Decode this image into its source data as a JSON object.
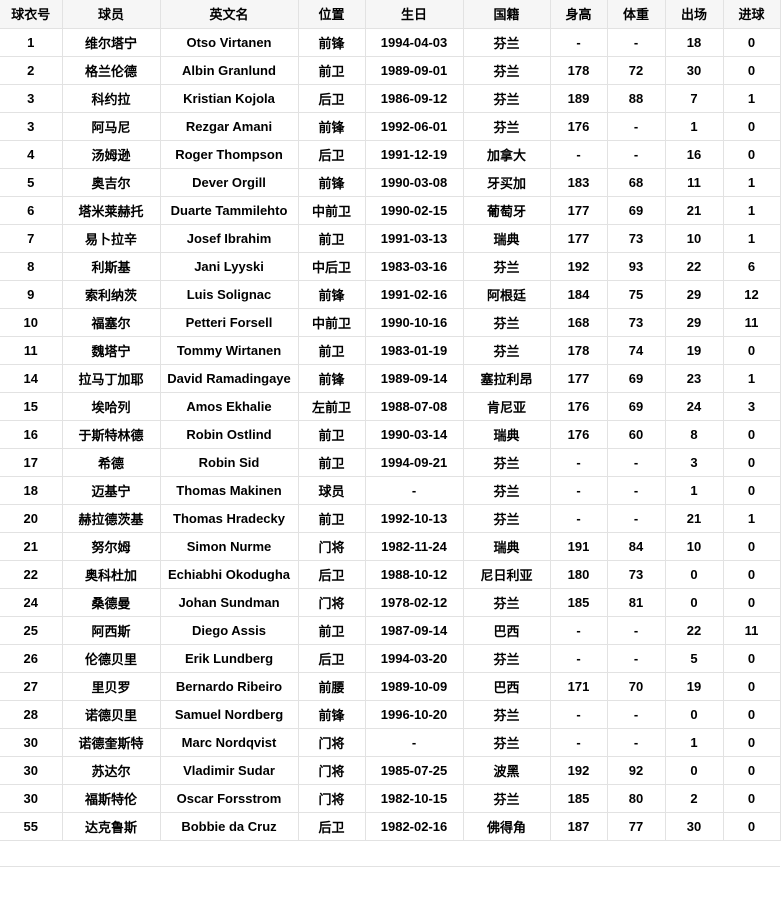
{
  "colors": {
    "border": "#e2e2e2",
    "header_bg": "#f6f6f6",
    "row_bg": "#ffffff",
    "text": "#000000"
  },
  "table": {
    "headers": [
      "球衣号",
      "球员",
      "英文名",
      "位置",
      "生日",
      "国籍",
      "身高",
      "体重",
      "出场",
      "进球"
    ],
    "column_keys": [
      "jersey-number",
      "player-name",
      "english-name",
      "position",
      "birthday",
      "nationality",
      "height",
      "weight",
      "appearances",
      "goals"
    ],
    "rows": [
      [
        "1",
        "维尔塔宁",
        "Otso Virtanen",
        "前锋",
        "1994-04-03",
        "芬兰",
        "-",
        "-",
        "18",
        "0"
      ],
      [
        "2",
        "格兰伦德",
        "Albin Granlund",
        "前卫",
        "1989-09-01",
        "芬兰",
        "178",
        "72",
        "30",
        "0"
      ],
      [
        "3",
        "科约拉",
        "Kristian Kojola",
        "后卫",
        "1986-09-12",
        "芬兰",
        "189",
        "88",
        "7",
        "1"
      ],
      [
        "3",
        "阿马尼",
        "Rezgar Amani",
        "前锋",
        "1992-06-01",
        "芬兰",
        "176",
        "-",
        "1",
        "0"
      ],
      [
        "4",
        "汤姆逊",
        "Roger Thompson",
        "后卫",
        "1991-12-19",
        "加拿大",
        "-",
        "-",
        "16",
        "0"
      ],
      [
        "5",
        "奥吉尔",
        "Dever Orgill",
        "前锋",
        "1990-03-08",
        "牙买加",
        "183",
        "68",
        "11",
        "1"
      ],
      [
        "6",
        "塔米莱赫托",
        "Duarte Tammilehto",
        "中前卫",
        "1990-02-15",
        "葡萄牙",
        "177",
        "69",
        "21",
        "1"
      ],
      [
        "7",
        "易卜拉辛",
        "Josef Ibrahim",
        "前卫",
        "1991-03-13",
        "瑞典",
        "177",
        "73",
        "10",
        "1"
      ],
      [
        "8",
        "利斯基",
        "Jani Lyyski",
        "中后卫",
        "1983-03-16",
        "芬兰",
        "192",
        "93",
        "22",
        "6"
      ],
      [
        "9",
        "索利纳茨",
        "Luis Solignac",
        "前锋",
        "1991-02-16",
        "阿根廷",
        "184",
        "75",
        "29",
        "12"
      ],
      [
        "10",
        "福塞尔",
        "Petteri Forsell",
        "中前卫",
        "1990-10-16",
        "芬兰",
        "168",
        "73",
        "29",
        "11"
      ],
      [
        "11",
        "魏塔宁",
        "Tommy Wirtanen",
        "前卫",
        "1983-01-19",
        "芬兰",
        "178",
        "74",
        "19",
        "0"
      ],
      [
        "14",
        "拉马丁加耶",
        "David Ramadingaye",
        "前锋",
        "1989-09-14",
        "塞拉利昂",
        "177",
        "69",
        "23",
        "1"
      ],
      [
        "15",
        "埃哈列",
        "Amos Ekhalie",
        "左前卫",
        "1988-07-08",
        "肯尼亚",
        "176",
        "69",
        "24",
        "3"
      ],
      [
        "16",
        "于斯特林德",
        "Robin Ostlind",
        "前卫",
        "1990-03-14",
        "瑞典",
        "176",
        "60",
        "8",
        "0"
      ],
      [
        "17",
        "希德",
        "Robin Sid",
        "前卫",
        "1994-09-21",
        "芬兰",
        "-",
        "-",
        "3",
        "0"
      ],
      [
        "18",
        "迈基宁",
        "Thomas Makinen",
        "球员",
        "-",
        "芬兰",
        "-",
        "-",
        "1",
        "0"
      ],
      [
        "20",
        "赫拉德茨基",
        "Thomas Hradecky",
        "前卫",
        "1992-10-13",
        "芬兰",
        "-",
        "-",
        "21",
        "1"
      ],
      [
        "21",
        "努尔姆",
        "Simon Nurme",
        "门将",
        "1982-11-24",
        "瑞典",
        "191",
        "84",
        "10",
        "0"
      ],
      [
        "22",
        "奥科杜加",
        "Echiabhi Okodugha",
        "后卫",
        "1988-10-12",
        "尼日利亚",
        "180",
        "73",
        "0",
        "0"
      ],
      [
        "24",
        "桑德曼",
        "Johan Sundman",
        "门将",
        "1978-02-12",
        "芬兰",
        "185",
        "81",
        "0",
        "0"
      ],
      [
        "25",
        "阿西斯",
        "Diego Assis",
        "前卫",
        "1987-09-14",
        "巴西",
        "-",
        "-",
        "22",
        "11"
      ],
      [
        "26",
        "伦德贝里",
        "Erik Lundberg",
        "后卫",
        "1994-03-20",
        "芬兰",
        "-",
        "-",
        "5",
        "0"
      ],
      [
        "27",
        "里贝罗",
        "Bernardo Ribeiro",
        "前腰",
        "1989-10-09",
        "巴西",
        "171",
        "70",
        "19",
        "0"
      ],
      [
        "28",
        "诺德贝里",
        "Samuel Nordberg",
        "前锋",
        "1996-10-20",
        "芬兰",
        "-",
        "-",
        "0",
        "0"
      ],
      [
        "30",
        "诺德奎斯特",
        "Marc Nordqvist",
        "门将",
        "-",
        "芬兰",
        "-",
        "-",
        "1",
        "0"
      ],
      [
        "30",
        "苏达尔",
        "Vladimir Sudar",
        "门将",
        "1985-07-25",
        "波黑",
        "192",
        "92",
        "0",
        "0"
      ],
      [
        "30",
        "福斯特伦",
        "Oscar Forsstrom",
        "门将",
        "1982-10-15",
        "芬兰",
        "185",
        "80",
        "2",
        "0"
      ],
      [
        "55",
        "达克鲁斯",
        "Bobbie da Cruz",
        "后卫",
        "1982-02-16",
        "佛得角",
        "187",
        "77",
        "30",
        "0"
      ]
    ]
  }
}
